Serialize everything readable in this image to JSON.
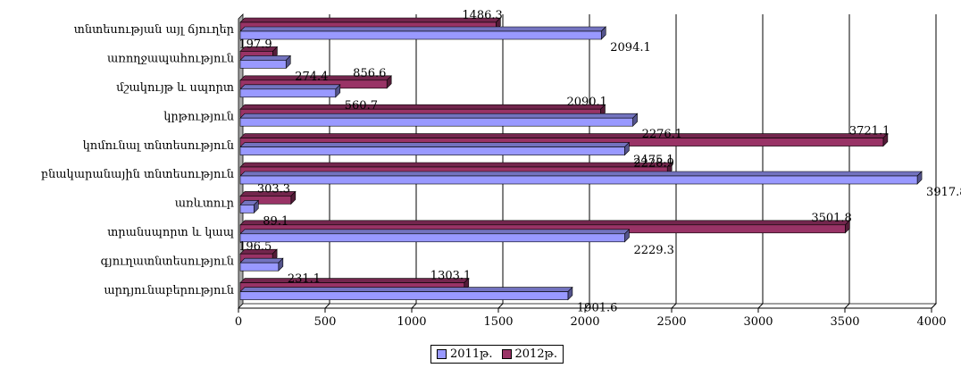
{
  "chart_data": {
    "type": "bar",
    "orientation": "horizontal",
    "categories": [
      "տնտեսության այլ ճյուղեր",
      "առողջապահություն",
      "մշակույթ և սպորտ",
      "կրթություն",
      "կոմունալ տնտեսություն",
      "բնակարանային տնտեսություն",
      "առևտուր",
      "տրանսպորտ և կապ",
      "գյուղատնտեսություն",
      "արդյունաբերություն"
    ],
    "series": [
      {
        "name": "2011թ.",
        "color": "#9999ff",
        "values": [
          2094.1,
          274.4,
          560.7,
          2276.1,
          2228.9,
          3917.8,
          89.1,
          2229.3,
          231.1,
          1901.6
        ]
      },
      {
        "name": "2012թ.",
        "color": "#993366",
        "values": [
          1486.3,
          197.9,
          856.6,
          2090.1,
          3721.1,
          2475.1,
          303.3,
          3501.8,
          196.5,
          1303.1
        ]
      }
    ],
    "value_labels": {
      "2011թ.": [
        "2094.1",
        "274.4",
        "560.7",
        "2276.1",
        "2228.9",
        "3917.8",
        "89.1",
        "2229.3",
        "231.1",
        "1901.6"
      ],
      "2012թ.": [
        "1486.3",
        "197.9",
        "856.6",
        "2090.1",
        "3721.1",
        "2475.1",
        "303.3",
        "3501.8",
        "196.5",
        "1303.1"
      ]
    },
    "xlim": [
      0,
      4000
    ],
    "xticks": [
      0,
      500,
      1000,
      1500,
      2000,
      2500,
      3000,
      3500,
      4000
    ],
    "xticklabels": [
      "0",
      "500",
      "1000",
      "1500",
      "2000",
      "2500",
      "3000",
      "3500",
      "4000"
    ],
    "title": "",
    "xlabel": "",
    "ylabel": "",
    "grid": "vertical major gridlines",
    "legend_position": "bottom-center",
    "style": "3d"
  }
}
